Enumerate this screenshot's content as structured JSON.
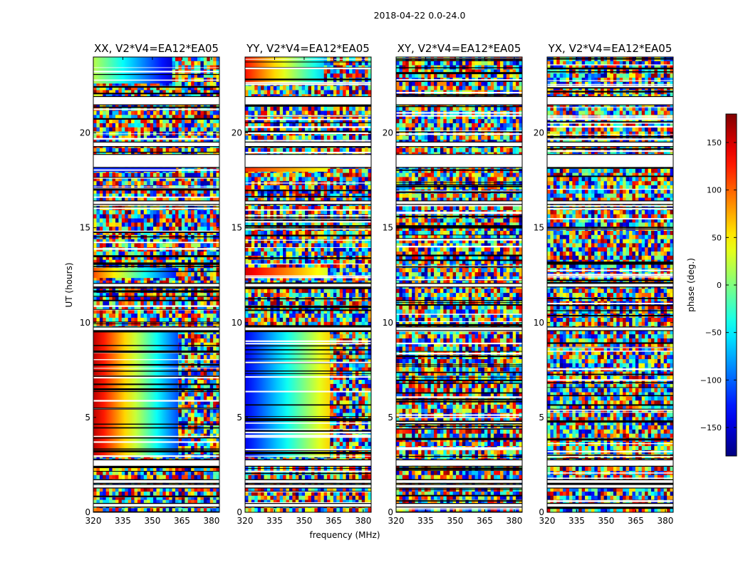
{
  "chart_data": {
    "type": "heatmap",
    "suptitle": "2018-04-22 0.0-24.0",
    "xlabel": "frequency (MHz)",
    "ylabel": "UT (hours)",
    "xlim": [
      320,
      384
    ],
    "ylim": [
      0,
      24
    ],
    "xticks": [
      320,
      335,
      350,
      365,
      380
    ],
    "yticks": [
      0,
      5,
      10,
      15,
      20
    ],
    "colorbar": {
      "label": "phase (deg.)",
      "colormap": "jet",
      "range": [
        -180,
        180
      ],
      "ticks": [
        150,
        100,
        50,
        0,
        -50,
        -100,
        -150
      ],
      "tick_labels": [
        "150",
        "100",
        "50",
        "0",
        "−50",
        "−100",
        "−150"
      ]
    },
    "flagged_hour_bands": [
      [
        0.3,
        0.45
      ],
      [
        1.3,
        1.45
      ],
      [
        1.55,
        1.7
      ],
      [
        2.45,
        2.75
      ],
      [
        9.6,
        9.75
      ],
      [
        11.9,
        12.05
      ],
      [
        16.25,
        16.4
      ],
      [
        18.2,
        18.85
      ],
      [
        19.3,
        19.5
      ],
      [
        21.5,
        21.9
      ]
    ],
    "panels": [
      {
        "title": "XX, V2*V4=EA12*EA05",
        "coherent_regions": [
          {
            "hours": [
              2.9,
              9.6
            ],
            "freq": [
              320,
              363
            ],
            "phase_at_start_deg": 160,
            "phase_at_end_deg": -110
          },
          {
            "hours": [
              12.35,
              12.9
            ],
            "freq": [
              320,
              362
            ],
            "phase_at_start_deg": 110,
            "phase_at_end_deg": -130
          },
          {
            "hours": [
              17.95,
              18.2
            ],
            "freq": [
              320,
              362
            ],
            "phase_at_start_deg": -120,
            "phase_at_end_deg": -130
          },
          {
            "hours": [
              22.6,
              24.0
            ],
            "freq": [
              320,
              360
            ],
            "phase_at_start_deg": 20,
            "phase_at_end_deg": -150
          }
        ]
      },
      {
        "title": "YY, V2*V4=EA12*EA05",
        "coherent_regions": [
          {
            "hours": [
              2.9,
              9.6
            ],
            "freq": [
              320,
              363
            ],
            "phase_at_start_deg": -140,
            "phase_at_end_deg": 60
          },
          {
            "hours": [
              12.35,
              12.9
            ],
            "freq": [
              320,
              362
            ],
            "phase_at_start_deg": 150,
            "phase_at_end_deg": 30
          },
          {
            "hours": [
              17.95,
              18.2
            ],
            "freq": [
              320,
              362
            ],
            "phase_at_start_deg": 120,
            "phase_at_end_deg": 40
          },
          {
            "hours": [
              22.6,
              24.0
            ],
            "freq": [
              320,
              360
            ],
            "phase_at_start_deg": 130,
            "phase_at_end_deg": -60
          }
        ]
      },
      {
        "title": "XY, V2*V4=EA12*EA05",
        "coherent_regions": []
      },
      {
        "title": "YX, V2*V4=EA12*EA05",
        "coherent_regions": []
      }
    ]
  }
}
